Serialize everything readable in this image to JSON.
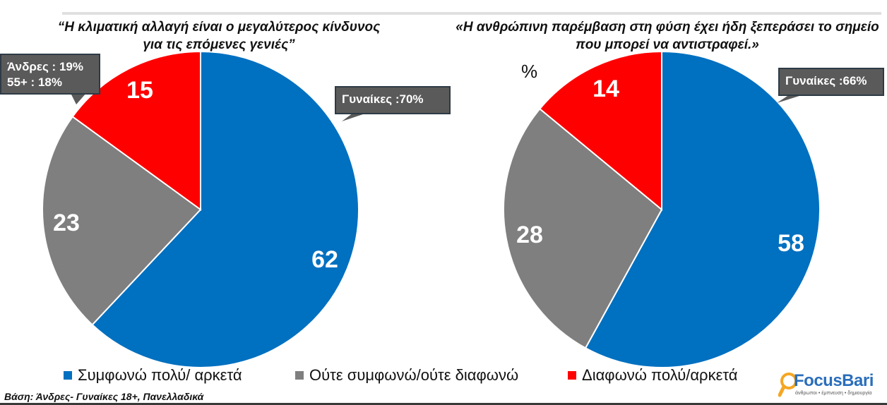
{
  "chart_data": [
    {
      "type": "pie",
      "title": "“Η κλιματική αλλαγή είναι ο μεγαλύτερος κίνδυνος για τις επόμενες γενιές”",
      "categories": [
        "Συμφωνώ πολύ/ αρκετά",
        "Ούτε συμφωνώ/ούτε διαφωνώ",
        "Διαφωνώ πολύ/αρκετά"
      ],
      "values": [
        62,
        23,
        15
      ],
      "colors": [
        "#0070c0",
        "#7f7f7f",
        "#ff0000"
      ],
      "annotations": [
        "Άνδρες : 19%",
        "55+ :  18%",
        "Γυναίκες :70%"
      ]
    },
    {
      "type": "pie",
      "title": "«Η ανθρώπινη παρέμβαση στη φύση έχει ήδη ξεπεράσει το σημείο που μπορεί να αντιστραφεί.»",
      "categories": [
        "Συμφωνώ πολύ/ αρκετά",
        "Ούτε συμφωνώ/ούτε διαφωνώ",
        "Διαφωνώ πολύ/αρκετά"
      ],
      "values": [
        58,
        28,
        14
      ],
      "colors": [
        "#0070c0",
        "#7f7f7f",
        "#ff0000"
      ],
      "annotations": [
        "Γυναίκες :66%"
      ]
    }
  ],
  "titles": {
    "left_line1": "“Η κλιματική αλλαγή είναι ο μεγαλύτερος κίνδυνος",
    "left_line2": "για τις επόμενες γενιές”",
    "right_line1": "«Η ανθρώπινη παρέμβαση στη φύση έχει ήδη ξεπεράσει το σημείο",
    "right_line2": "που μπορεί να αντιστραφεί.»"
  },
  "unit_label": "%",
  "callouts": {
    "men_line1": "Άνδρες : 19%",
    "men_line2": "55+ :  18%",
    "women_left": "Γυναίκες :70%",
    "women_right": "Γυναίκες :66%"
  },
  "legend": [
    {
      "label": "Συμφωνώ πολύ/ αρκετά",
      "color": "#0070c0"
    },
    {
      "label": "Ούτε συμφωνώ/ούτε διαφωνώ",
      "color": "#7f7f7f"
    },
    {
      "label": "Διαφωνώ πολύ/αρκετά",
      "color": "#ff0000"
    }
  ],
  "base_note": "Βάση: Άνδρες- Γυναίκες 18+, Πανελλαδικά",
  "logo": {
    "name": "FocusBari",
    "tagline": "άνθρωποι • έμπνευση • δημιουργία"
  }
}
